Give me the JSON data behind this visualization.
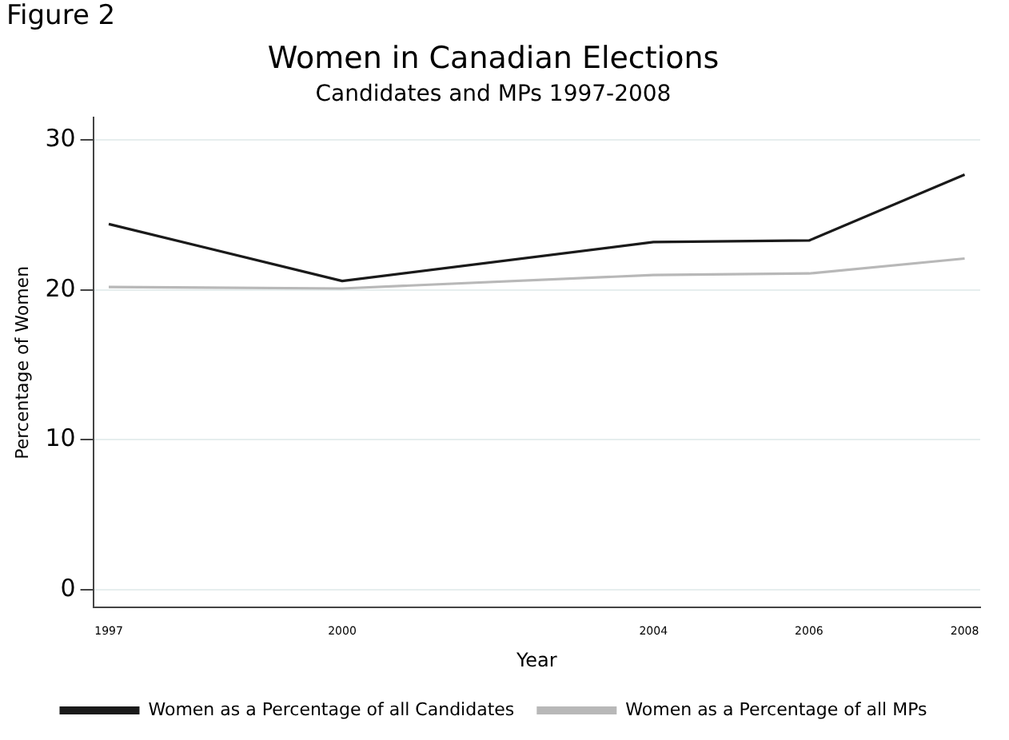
{
  "chart_data": {
    "type": "line",
    "title": "Women in Canadian Elections",
    "subtitle": "Candidates and MPs 1997-2008",
    "xlabel": "Year",
    "ylabel": "Percentage of Women",
    "annotations": [
      "Figure 2"
    ],
    "x": [
      1997,
      2000,
      2004,
      2006,
      2008
    ],
    "series": [
      {
        "name": "Women as a Percentage of all Candidates",
        "color": "#1a1a1a",
        "values": [
          24.4,
          20.6,
          23.2,
          23.3,
          27.7
        ]
      },
      {
        "name": "Women as a Percentage of all MPs",
        "color": "#b8b8b8",
        "values": [
          20.2,
          20.1,
          21.0,
          21.1,
          22.1
        ]
      }
    ],
    "xlim": [
      1996.8,
      2008.2
    ],
    "xticks": [
      1997,
      2000,
      2004,
      2006,
      2008
    ],
    "ylim": [
      -1.2,
      31.5
    ],
    "yticks": [
      0,
      10,
      20,
      30
    ],
    "grid": "y",
    "legend": "bottom",
    "marker": "none",
    "line_style": "solid"
  }
}
